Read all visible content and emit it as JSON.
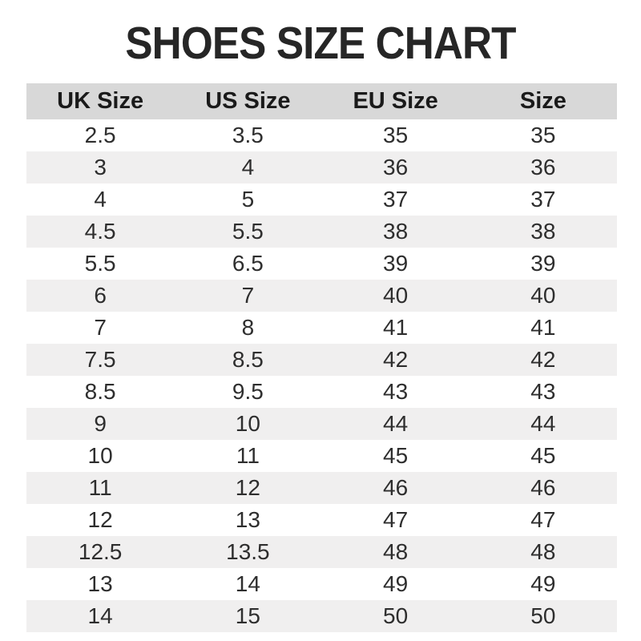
{
  "title": "SHOES SIZE CHART",
  "colors": {
    "title_text": "#262626",
    "header_bg": "#d8d8d8",
    "header_text": "#1a1a1a",
    "stripe_bg": "#f0efef",
    "row_bg": "#ffffff",
    "cell_text": "#2e2e2e"
  },
  "chart_data": {
    "type": "table",
    "title": "SHOES SIZE CHART",
    "columns": [
      "UK Size",
      "US Size",
      "EU Size",
      "Size"
    ],
    "rows": [
      [
        "2.5",
        "3.5",
        "35",
        "35"
      ],
      [
        "3",
        "4",
        "36",
        "36"
      ],
      [
        "4",
        "5",
        "37",
        "37"
      ],
      [
        "4.5",
        "5.5",
        "38",
        "38"
      ],
      [
        "5.5",
        "6.5",
        "39",
        "39"
      ],
      [
        "6",
        "7",
        "40",
        "40"
      ],
      [
        "7",
        "8",
        "41",
        "41"
      ],
      [
        "7.5",
        "8.5",
        "42",
        "42"
      ],
      [
        "8.5",
        "9.5",
        "43",
        "43"
      ],
      [
        "9",
        "10",
        "44",
        "44"
      ],
      [
        "10",
        "11",
        "45",
        "45"
      ],
      [
        "11",
        "12",
        "46",
        "46"
      ],
      [
        "12",
        "13",
        "47",
        "47"
      ],
      [
        "12.5",
        "13.5",
        "48",
        "48"
      ],
      [
        "13",
        "14",
        "49",
        "49"
      ],
      [
        "14",
        "15",
        "50",
        "50"
      ]
    ],
    "layout": {
      "zebra_striping": true,
      "column_alignment": "center",
      "header_position": "top",
      "column_count": 4,
      "row_count": 16
    }
  }
}
